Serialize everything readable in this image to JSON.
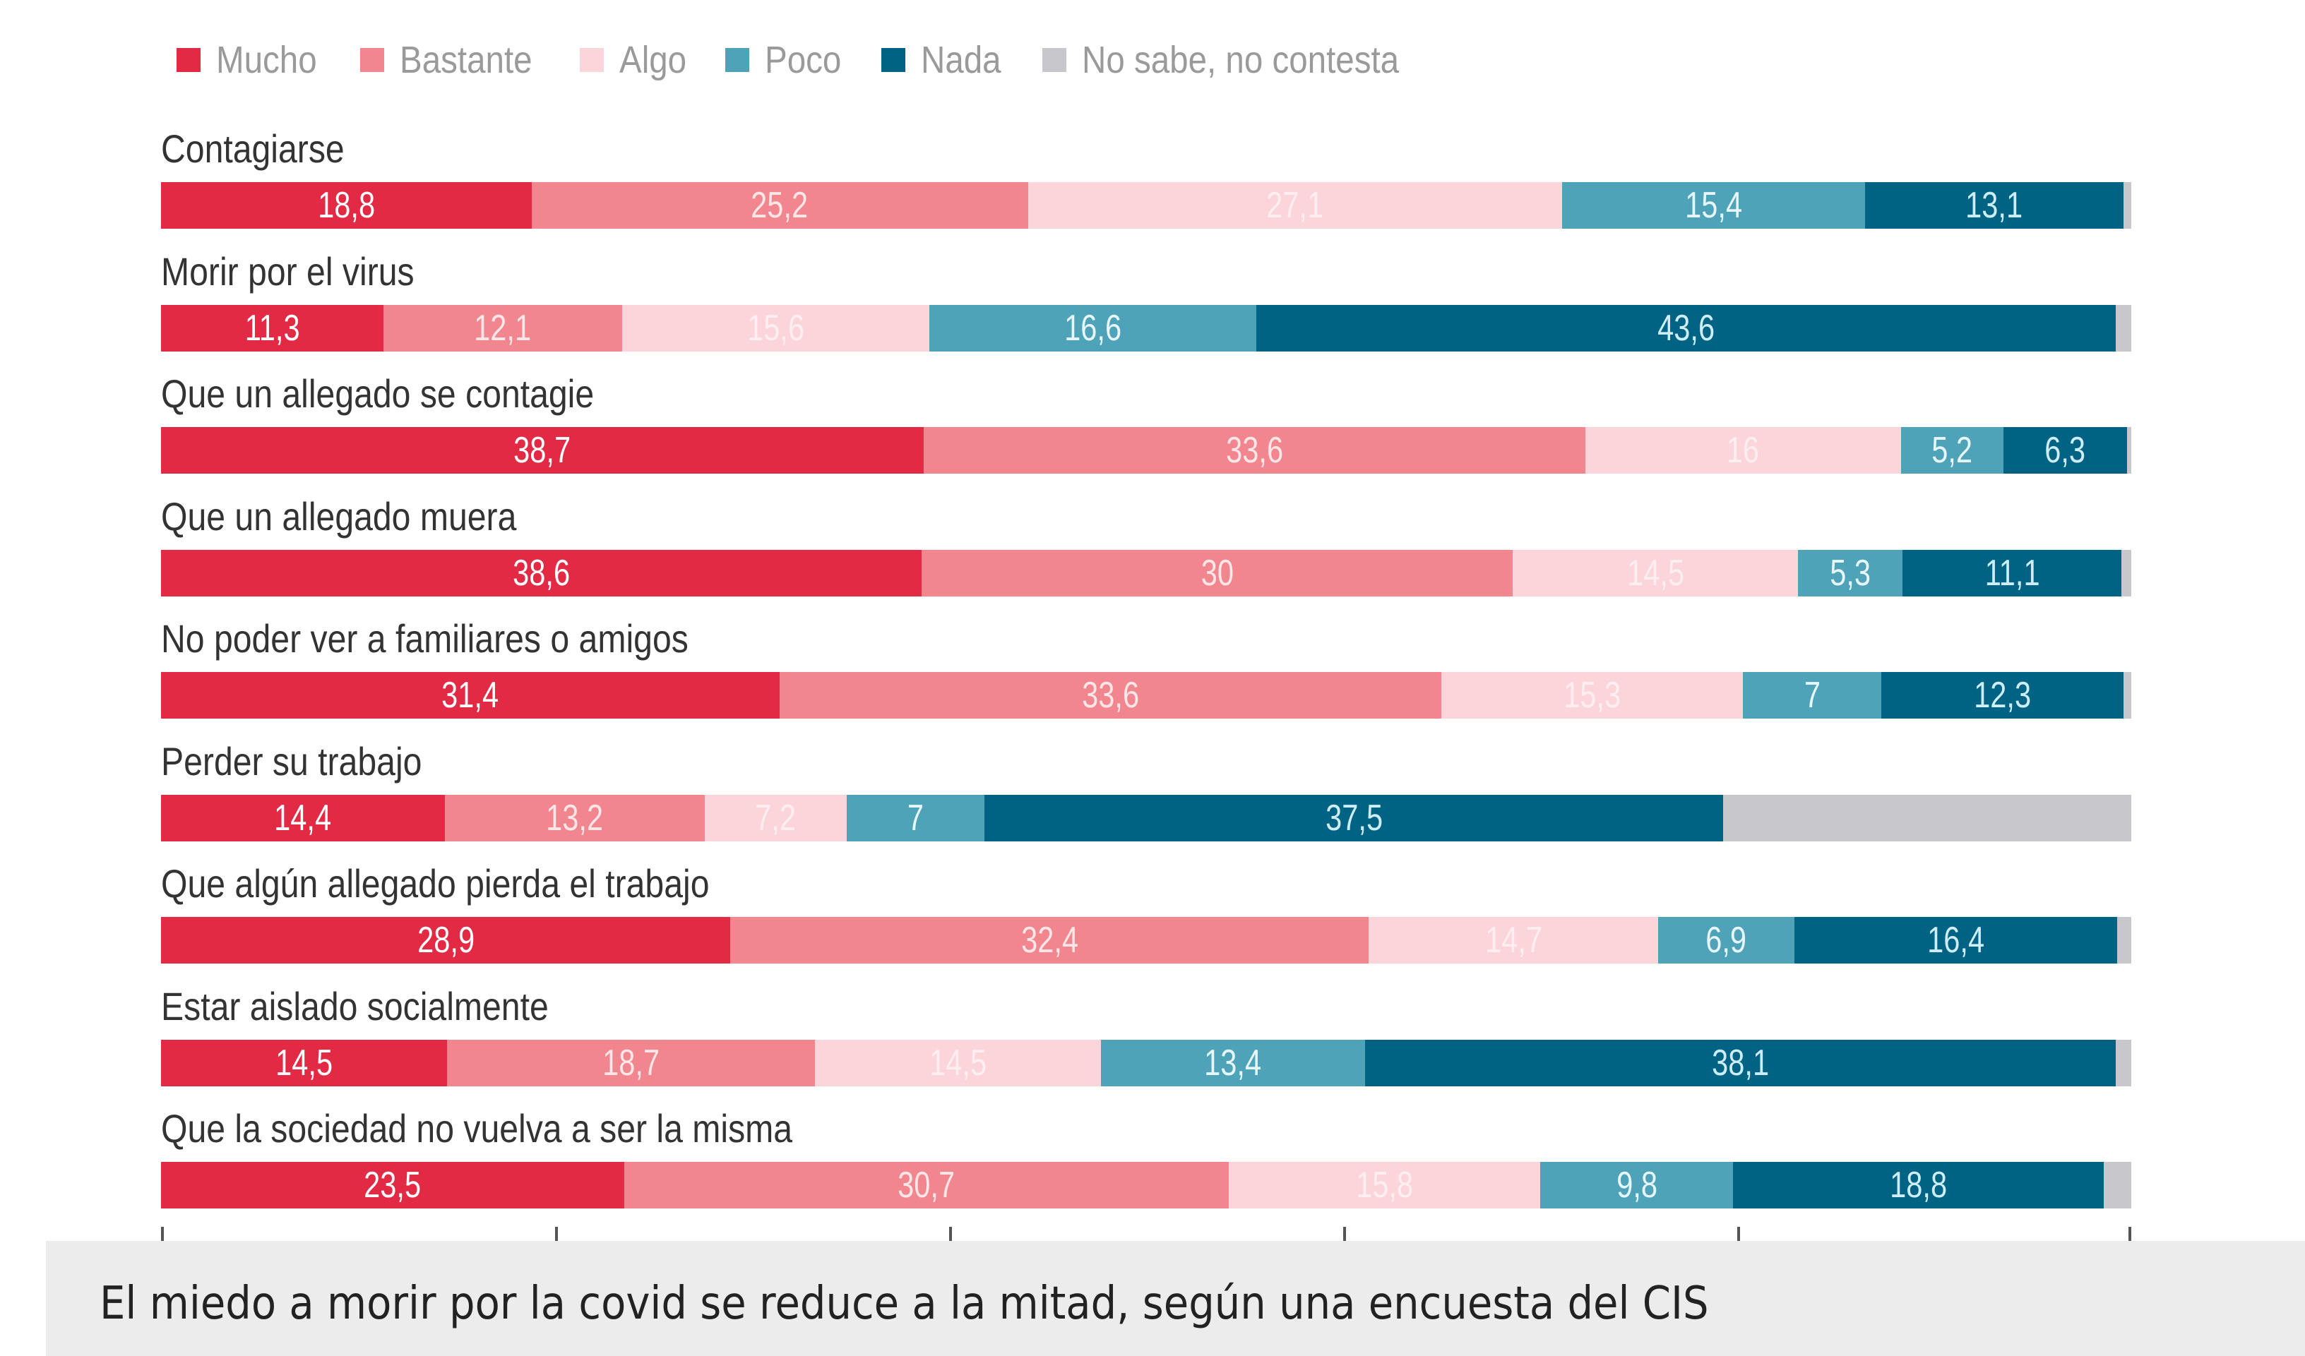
{
  "chart_data": {
    "type": "bar",
    "orientation": "horizontal",
    "stacked": true,
    "xlim": [
      0,
      100
    ],
    "x_ticks": [
      0,
      20,
      40,
      60,
      80,
      100
    ],
    "x_tick_labels_shown": false,
    "legend_placement": "top",
    "categories": [
      "Contagiarse",
      "Morir por el virus",
      "Que un allegado se contagie",
      "Que un allegado muera",
      "No poder ver a familiares o amigos",
      "Perder su trabajo",
      "Que algún allegado pierda el trabajo",
      "Estar aislado socialmente",
      "Que la sociedad no vuelva a ser la misma"
    ],
    "series": [
      {
        "name": "Mucho",
        "color": "#e32a45",
        "label_color": "#ffffff",
        "values": [
          18.8,
          11.3,
          38.7,
          38.6,
          31.4,
          14.4,
          28.9,
          14.5,
          23.5
        ]
      },
      {
        "name": "Bastante",
        "color": "#f2868f",
        "label_color": "#fde6e8",
        "values": [
          25.2,
          12.1,
          33.6,
          30,
          33.6,
          13.2,
          32.4,
          18.7,
          30.7
        ]
      },
      {
        "name": "Algo",
        "color": "#fbd5da",
        "label_color": "#fdeef0",
        "values": [
          27.1,
          15.6,
          16,
          14.5,
          15.3,
          7.2,
          14.7,
          14.5,
          15.8
        ]
      },
      {
        "name": "Poco",
        "color": "#4ea3b8",
        "label_color": "#e6f6fa",
        "values": [
          15.4,
          16.6,
          5.2,
          5.3,
          7,
          7,
          6.9,
          13.4,
          9.8
        ]
      },
      {
        "name": "Nada",
        "color": "#006384",
        "label_color": "#cdeef8",
        "values": [
          13.1,
          43.6,
          6.3,
          11.1,
          12.3,
          37.5,
          16.4,
          38.1,
          18.8
        ]
      },
      {
        "name": "No sabe, no contesta",
        "color": "#c8c8cc",
        "label_color": "#ffffff",
        "values": [
          0.4,
          0.8,
          0.2,
          0.5,
          0.4,
          20.7,
          0.7,
          0.8,
          1.4
        ],
        "labels_shown": false
      }
    ]
  },
  "caption": "El miedo a morir por la covid se reduce a la mitad, según una encuesta del CIS"
}
